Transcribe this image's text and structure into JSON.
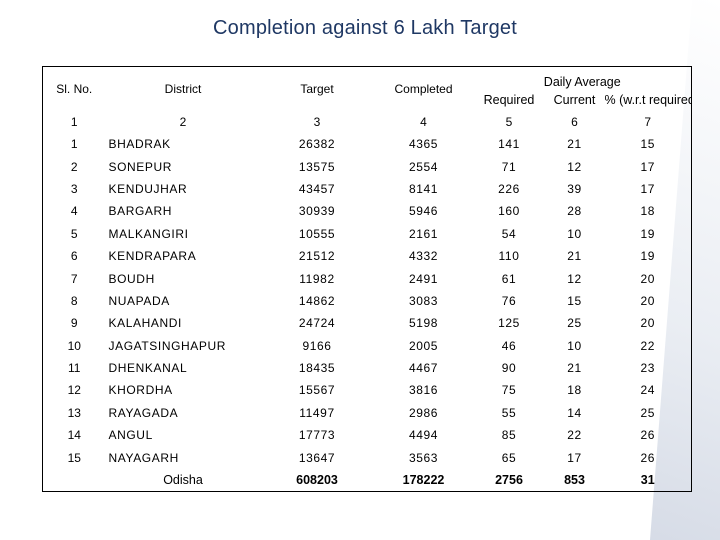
{
  "title": "Completion against 6 Lakh Target",
  "headers": {
    "sl_no": "Sl. No.",
    "district": "District",
    "target": "Target",
    "completed": "Completed",
    "daily_average": "Daily Average",
    "required": "Required",
    "current": "Current",
    "pct_required": "% (w.r.t required)"
  },
  "column_numbers": [
    "1",
    "2",
    "3",
    "4",
    "5",
    "6",
    "7"
  ],
  "rows": [
    {
      "sl": "1",
      "district": "BHADRAK",
      "target": "26382",
      "completed": "4365",
      "required": "141",
      "current": "21",
      "pct": "15"
    },
    {
      "sl": "2",
      "district": "SONEPUR",
      "target": "13575",
      "completed": "2554",
      "required": "71",
      "current": "12",
      "pct": "17"
    },
    {
      "sl": "3",
      "district": "KENDUJHAR",
      "target": "43457",
      "completed": "8141",
      "required": "226",
      "current": "39",
      "pct": "17"
    },
    {
      "sl": "4",
      "district": "BARGARH",
      "target": "30939",
      "completed": "5946",
      "required": "160",
      "current": "28",
      "pct": "18"
    },
    {
      "sl": "5",
      "district": "MALKANGIRI",
      "target": "10555",
      "completed": "2161",
      "required": "54",
      "current": "10",
      "pct": "19"
    },
    {
      "sl": "6",
      "district": "KENDRAPARA",
      "target": "21512",
      "completed": "4332",
      "required": "110",
      "current": "21",
      "pct": "19"
    },
    {
      "sl": "7",
      "district": "BOUDH",
      "target": "11982",
      "completed": "2491",
      "required": "61",
      "current": "12",
      "pct": "20"
    },
    {
      "sl": "8",
      "district": "NUAPADA",
      "target": "14862",
      "completed": "3083",
      "required": "76",
      "current": "15",
      "pct": "20"
    },
    {
      "sl": "9",
      "district": "KALAHANDI",
      "target": "24724",
      "completed": "5198",
      "required": "125",
      "current": "25",
      "pct": "20"
    },
    {
      "sl": "10",
      "district": "JAGATSINGHAPUR",
      "target": "9166",
      "completed": "2005",
      "required": "46",
      "current": "10",
      "pct": "22"
    },
    {
      "sl": "11",
      "district": "DHENKANAL",
      "target": "18435",
      "completed": "4467",
      "required": "90",
      "current": "21",
      "pct": "23"
    },
    {
      "sl": "12",
      "district": "KHORDHA",
      "target": "15567",
      "completed": "3816",
      "required": "75",
      "current": "18",
      "pct": "24"
    },
    {
      "sl": "13",
      "district": "RAYAGADA",
      "target": "11497",
      "completed": "2986",
      "required": "55",
      "current": "14",
      "pct": "25"
    },
    {
      "sl": "14",
      "district": "ANGUL",
      "target": "17773",
      "completed": "4494",
      "required": "85",
      "current": "22",
      "pct": "26"
    },
    {
      "sl": "15",
      "district": "NAYAGARH",
      "target": "13647",
      "completed": "3563",
      "required": "65",
      "current": "17",
      "pct": "26"
    }
  ],
  "total": {
    "label": "Odisha",
    "target": "608203",
    "completed": "178222",
    "required": "2756",
    "current": "853",
    "pct": "31"
  },
  "colors": {
    "title": "#1f3864",
    "border": "#000000"
  }
}
